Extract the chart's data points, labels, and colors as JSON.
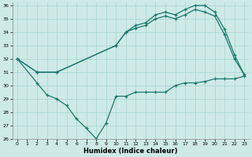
{
  "xlabel": "Humidex (Indice chaleur)",
  "bg_color": "#ceeae6",
  "grid_color": "#aed8d4",
  "line_color": "#1a7a6e",
  "xlim": [
    -0.5,
    23.5
  ],
  "ylim": [
    26,
    36.2
  ],
  "xticks": [
    0,
    1,
    2,
    3,
    4,
    5,
    6,
    7,
    8,
    9,
    10,
    11,
    12,
    13,
    14,
    15,
    16,
    17,
    18,
    19,
    20,
    21,
    22,
    23
  ],
  "yticks": [
    26,
    27,
    28,
    29,
    30,
    31,
    32,
    33,
    34,
    35,
    36
  ],
  "line1_x": [
    0,
    2,
    4,
    10,
    11,
    12,
    13,
    14,
    15,
    16,
    17,
    18,
    19,
    20,
    21,
    22,
    23
  ],
  "line1_y": [
    32,
    31,
    31,
    33,
    34,
    34.5,
    34.7,
    35.3,
    35.5,
    35.3,
    35.7,
    36.0,
    36.0,
    35.5,
    34.2,
    32.3,
    30.8
  ],
  "line2_x": [
    0,
    2,
    4,
    10,
    11,
    12,
    13,
    14,
    15,
    16,
    17,
    18,
    19,
    20,
    21,
    22,
    23
  ],
  "line2_y": [
    32,
    31,
    31,
    33,
    34,
    34.3,
    34.5,
    35.0,
    35.2,
    35.0,
    35.3,
    35.7,
    35.5,
    35.2,
    33.8,
    32.0,
    30.8
  ],
  "line3_x": [
    0,
    2,
    3,
    4,
    5,
    6,
    7,
    8,
    9,
    10,
    11,
    12,
    13,
    14,
    15,
    16,
    17,
    18,
    19,
    20,
    21,
    22,
    23
  ],
  "line3_y": [
    32,
    30.2,
    29.3,
    29.0,
    28.5,
    27.5,
    26.8,
    26.0,
    27.2,
    29.2,
    29.2,
    29.5,
    29.5,
    29.5,
    29.5,
    30.0,
    30.2,
    30.2,
    30.3,
    30.5,
    30.5,
    30.5,
    30.7
  ]
}
